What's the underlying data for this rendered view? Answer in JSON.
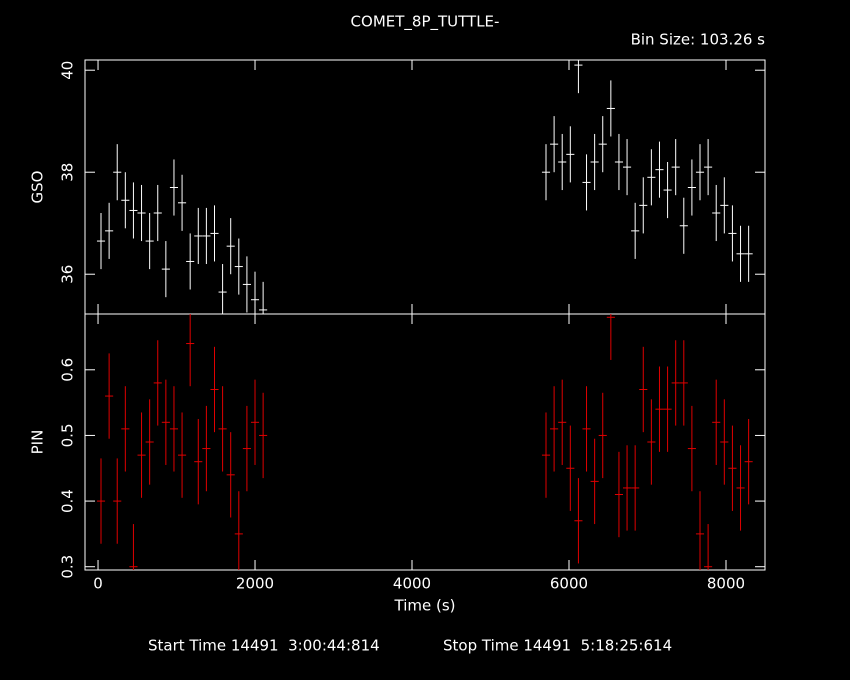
{
  "header": {
    "title": "COMET_8P_TUTTLE-",
    "bin_size": "Bin Size: 103.26 s"
  },
  "footer": {
    "start": "Start Time 14491  3:00:44:814",
    "stop": "Stop Time 14491  5:18:25:614"
  },
  "chart_data": [
    {
      "type": "scatter",
      "y_label": "GSO",
      "color": "#ffffff",
      "x": [
        38,
        141.26,
        244.52,
        347.78,
        451.04,
        554.3,
        657.56,
        760.82,
        864.08,
        967.34,
        1070.6,
        1173.86,
        1277.12,
        1380.38,
        1483.64,
        1586.9,
        1690.16,
        1793.42,
        1896.68,
        1999.94,
        2103.2,
        5707,
        5810.26,
        5913.52,
        6016.78,
        6120.04,
        6223.3,
        6326.56,
        6429.82,
        6533.08,
        6636.34,
        6739.6,
        6842.86,
        6946.12,
        7049.38,
        7152.64,
        7255.9,
        7359.16,
        7462.42,
        7565.68,
        7668.94,
        7772.2,
        7875.46,
        7978.72,
        8081.98,
        8185.24,
        8288.5
      ],
      "values": [
        36.65,
        36.85,
        38.0,
        37.45,
        37.25,
        37.2,
        36.65,
        37.2,
        36.1,
        37.7,
        37.4,
        36.25,
        36.75,
        36.75,
        36.8,
        35.65,
        36.55,
        36.15,
        35.8,
        35.5,
        35.3,
        38.0,
        38.55,
        38.2,
        38.35,
        40.1,
        37.8,
        38.2,
        38.55,
        39.25,
        38.2,
        38.1,
        36.85,
        37.35,
        37.9,
        38.05,
        37.65,
        38.1,
        36.95,
        37.7,
        38.0,
        38.1,
        37.2,
        37.35,
        36.8,
        36.4,
        36.4
      ],
      "yerr": 0.55,
      "xerr": 51.63,
      "xlim": [
        -166,
        8497
      ],
      "xticks": [
        0,
        2000,
        4000,
        6000,
        8000
      ],
      "ylim": [
        35.22,
        40.2
      ],
      "yticks": [
        36,
        38,
        40
      ]
    },
    {
      "type": "scatter",
      "y_label": "PIN",
      "x_label": "Time (s)",
      "color": "#e00000",
      "x": [
        38,
        141.26,
        244.52,
        347.78,
        451.04,
        554.3,
        657.56,
        760.82,
        864.08,
        967.34,
        1070.6,
        1173.86,
        1277.12,
        1380.38,
        1483.64,
        1586.9,
        1690.16,
        1793.42,
        1896.68,
        1999.94,
        2103.2,
        5707,
        5810.26,
        5913.52,
        6016.78,
        6120.04,
        6223.3,
        6326.56,
        6429.82,
        6533.08,
        6636.34,
        6739.6,
        6842.86,
        6946.12,
        7049.38,
        7152.64,
        7255.9,
        7359.16,
        7462.42,
        7565.68,
        7668.94,
        7772.2,
        7875.46,
        7978.72,
        8081.98,
        8185.24,
        8288.5
      ],
      "values": [
        0.4,
        0.56,
        0.4,
        0.51,
        0.3,
        0.47,
        0.49,
        0.58,
        0.52,
        0.51,
        0.47,
        0.64,
        0.46,
        0.48,
        0.57,
        0.51,
        0.44,
        0.35,
        0.48,
        0.52,
        0.5,
        0.47,
        0.51,
        0.52,
        0.45,
        0.37,
        0.51,
        0.43,
        0.5,
        0.68,
        0.41,
        0.42,
        0.42,
        0.57,
        0.49,
        0.54,
        0.54,
        0.58,
        0.58,
        0.48,
        0.35,
        0.3,
        0.52,
        0.49,
        0.45,
        0.42,
        0.46
      ],
      "yerr": 0.065,
      "xerr": 51.63,
      "xlim": [
        -166,
        8497
      ],
      "xticks": [
        0,
        2000,
        4000,
        6000,
        8000
      ],
      "ylim": [
        0.295,
        0.685
      ],
      "yticks": [
        0.3,
        0.4,
        0.5,
        0.6
      ]
    }
  ]
}
